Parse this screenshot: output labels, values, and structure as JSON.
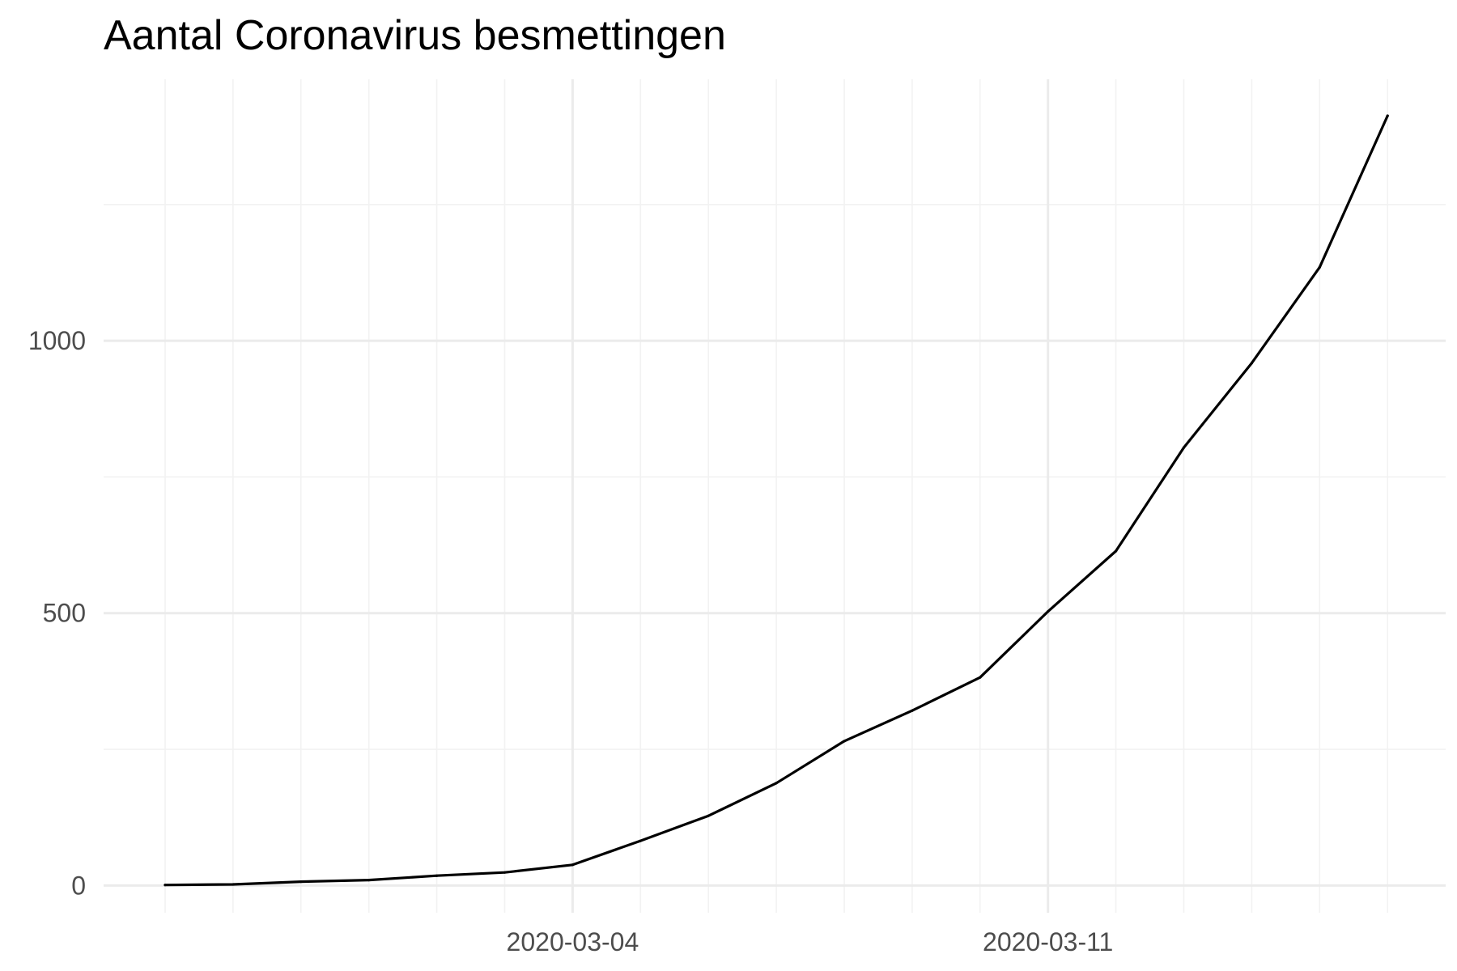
{
  "chart_data": {
    "type": "line",
    "title": "Aantal Coronavirus besmettingen",
    "xlabel": "",
    "ylabel": "",
    "x": [
      "2020-02-27",
      "2020-02-28",
      "2020-02-29",
      "2020-03-01",
      "2020-03-02",
      "2020-03-03",
      "2020-03-04",
      "2020-03-05",
      "2020-03-06",
      "2020-03-07",
      "2020-03-08",
      "2020-03-09",
      "2020-03-10",
      "2020-03-11",
      "2020-03-12",
      "2020-03-13",
      "2020-03-14",
      "2020-03-15",
      "2020-03-16"
    ],
    "series": [
      {
        "values": [
          1,
          2,
          7,
          10,
          18,
          24,
          38,
          82,
          128,
          188,
          265,
          321,
          382,
          503,
          614,
          804,
          959,
          1135,
          1413
        ]
      }
    ],
    "x_ticks": [
      "2020-03-04",
      "2020-03-11"
    ],
    "y_ticks": [
      0,
      500,
      1000
    ],
    "ylim": [
      -50,
      1480
    ],
    "grid": true,
    "legend": "none",
    "colors": {
      "line": "#000000",
      "grid_major": "#ebebeb",
      "grid_minor": "#f2f2f2",
      "tick_text": "#4d4d4d"
    }
  }
}
